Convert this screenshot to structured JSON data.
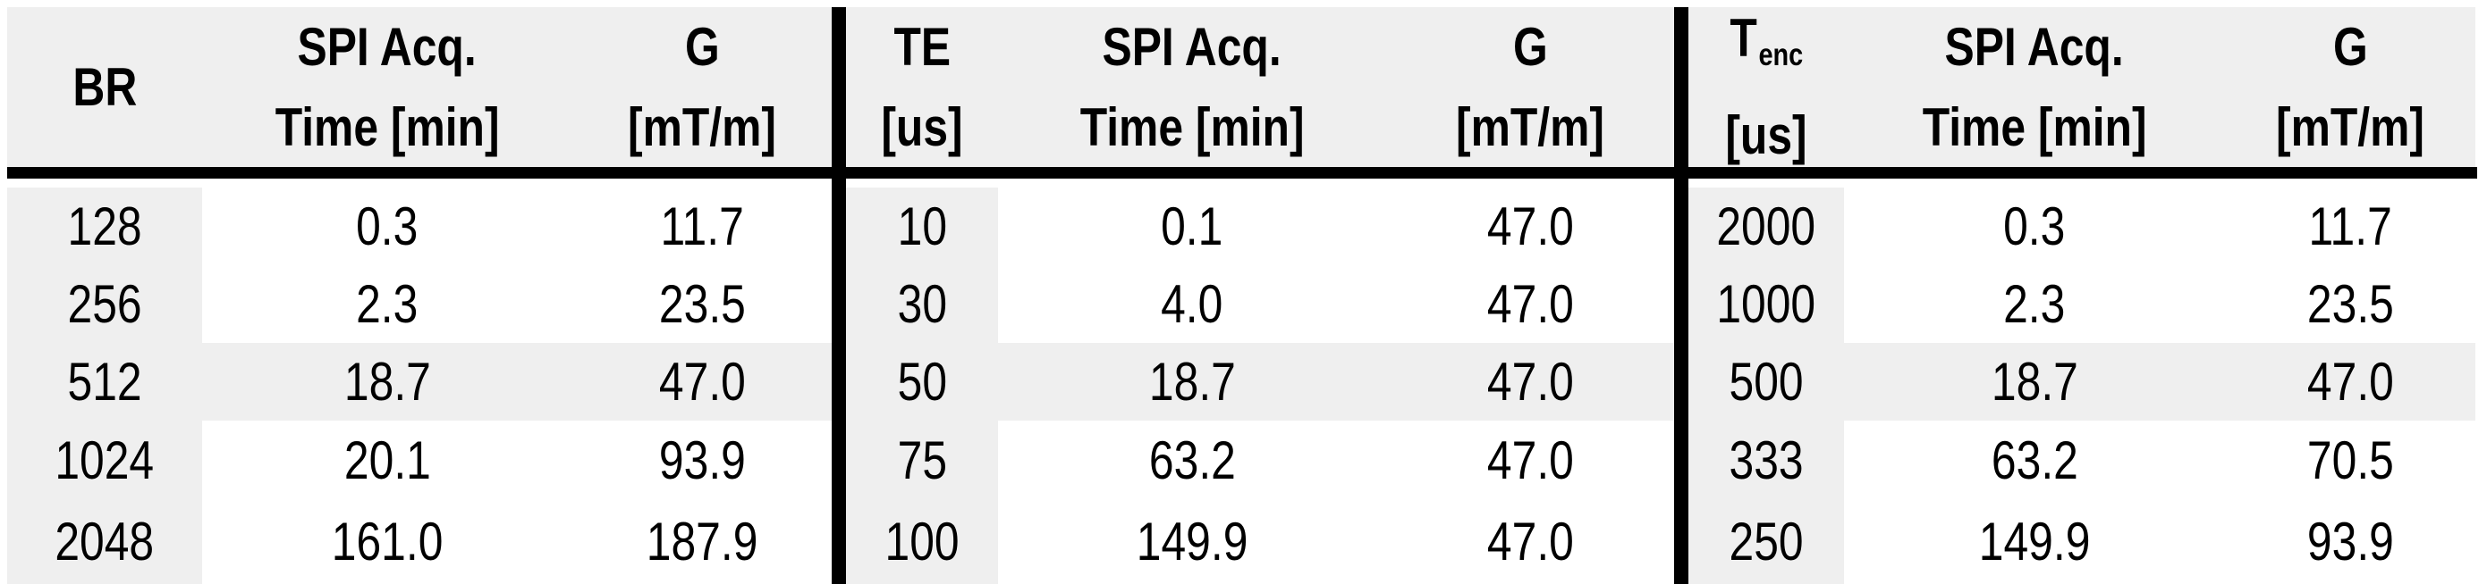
{
  "table": {
    "description_visible_text_only": true,
    "highlight_row": 3,
    "colors": {
      "cell_shade": "#efefef",
      "border": "#000000",
      "background": "#ffffff",
      "text": "#000000"
    },
    "sections": [
      {
        "col1": {
          "line1": "BR",
          "sub": "",
          "line2": ""
        },
        "col2": {
          "line1": "SPI Acq.",
          "line2": "Time [min]"
        },
        "col3": {
          "line1": "G",
          "line2": "[mT/m]"
        },
        "rows": [
          [
            "128",
            "0.3",
            "11.7"
          ],
          [
            "256",
            "2.3",
            "23.5"
          ],
          [
            "512",
            "18.7",
            "47.0"
          ],
          [
            "1024",
            "20.1",
            "93.9"
          ],
          [
            "2048",
            "161.0",
            "187.9"
          ]
        ]
      },
      {
        "col1": {
          "line1": "TE",
          "sub": "",
          "line2": "[us]"
        },
        "col2": {
          "line1": "SPI Acq.",
          "line2": "Time [min]"
        },
        "col3": {
          "line1": "G",
          "line2": "[mT/m]"
        },
        "rows": [
          [
            "10",
            "0.1",
            "47.0"
          ],
          [
            "30",
            "4.0",
            "47.0"
          ],
          [
            "50",
            "18.7",
            "47.0"
          ],
          [
            "75",
            "63.2",
            "47.0"
          ],
          [
            "100",
            "149.9",
            "47.0"
          ]
        ]
      },
      {
        "col1": {
          "line1": "T",
          "sub": "enc",
          "line2": "[us]"
        },
        "col2": {
          "line1": "SPI Acq.",
          "line2": "Time [min]"
        },
        "col3": {
          "line1": "G",
          "line2": "[mT/m]"
        },
        "rows": [
          [
            "2000",
            "0.3",
            "11.7"
          ],
          [
            "1000",
            "2.3",
            "23.5"
          ],
          [
            "500",
            "18.7",
            "47.0"
          ],
          [
            "333",
            "63.2",
            "70.5"
          ],
          [
            "250",
            "149.9",
            "93.9"
          ]
        ]
      }
    ]
  }
}
